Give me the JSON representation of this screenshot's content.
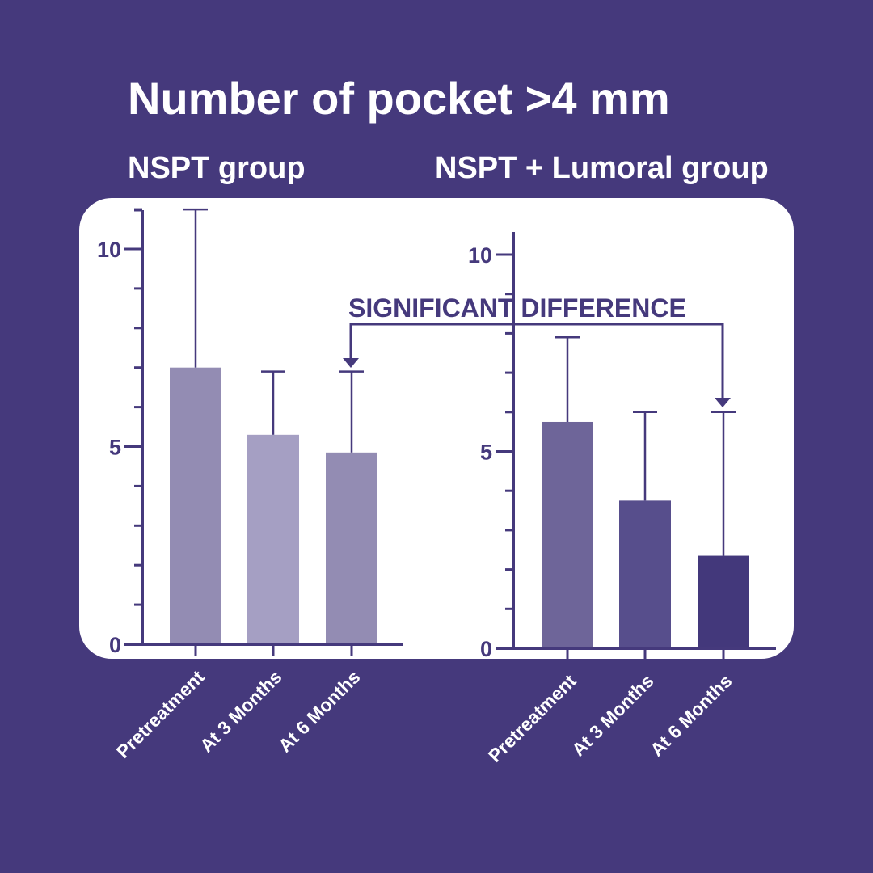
{
  "title": "Number of pocket >4 mm",
  "colors": {
    "background": "#45397c",
    "axis": "#45397c",
    "panel": "#ffffff"
  },
  "annotation": "SIGNIFICANT DIFFERENCE",
  "chart_data": [
    {
      "type": "bar",
      "title": "NSPT group",
      "categories": [
        "Pretreatment",
        "At 3 Months",
        "At 6 Months"
      ],
      "values": [
        7.0,
        5.3,
        4.85
      ],
      "error_upper": [
        11.0,
        6.9,
        6.9
      ],
      "colors": [
        "#938cb3",
        "#a59fc3",
        "#938cb3"
      ],
      "ylim": [
        0,
        11
      ],
      "yticks": [
        0,
        5,
        10
      ],
      "ytick_labels": [
        "0",
        "5",
        "10"
      ],
      "xlabel": "",
      "ylabel": ""
    },
    {
      "type": "bar",
      "title": "NSPT + Lumoral group",
      "categories": [
        "Pretreatment",
        "At 3 Months",
        "At 6 Months"
      ],
      "values": [
        5.75,
        3.75,
        2.35
      ],
      "error_upper": [
        7.9,
        6.0,
        6.0
      ],
      "colors": [
        "#6e6599",
        "#574e8c",
        "#43387b"
      ],
      "ylim": [
        0,
        10.6
      ],
      "yticks": [
        0,
        5,
        10
      ],
      "ytick_labels": [
        "0",
        "5",
        "10"
      ],
      "xlabel": "",
      "ylabel": ""
    }
  ]
}
